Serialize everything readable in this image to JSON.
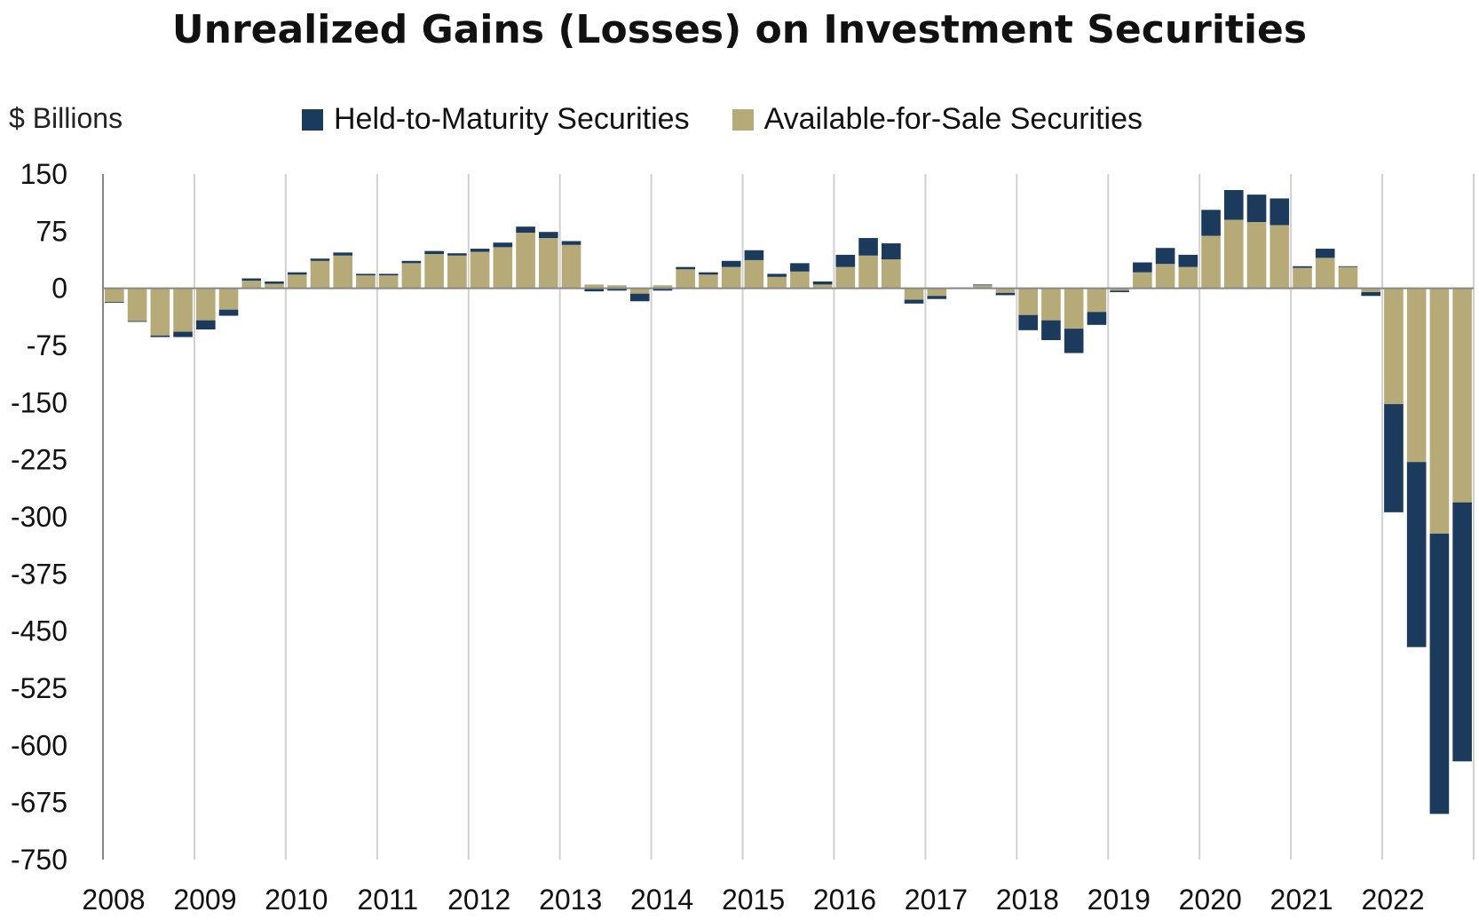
{
  "chart_data": {
    "type": "bar",
    "stacked": true,
    "title": "Unrealized Gains (Losses) on Investment Securities",
    "ylabel": "$ Billions",
    "ylim": [
      -750,
      150
    ],
    "yticks": [
      150,
      75,
      0,
      -75,
      -150,
      -225,
      -300,
      -375,
      -450,
      -525,
      -600,
      -675,
      -750
    ],
    "years": [
      "2008",
      "2009",
      "2010",
      "2011",
      "2012",
      "2013",
      "2014",
      "2015",
      "2016",
      "2017",
      "2018",
      "2019",
      "2020",
      "2021",
      "2022"
    ],
    "grid": "vertical at each year",
    "legend_position": "top",
    "categories": [
      "2008Q1",
      "2008Q2",
      "2008Q3",
      "2008Q4",
      "2009Q1",
      "2009Q2",
      "2009Q3",
      "2009Q4",
      "2010Q1",
      "2010Q2",
      "2010Q3",
      "2010Q4",
      "2011Q1",
      "2011Q2",
      "2011Q3",
      "2011Q4",
      "2012Q1",
      "2012Q2",
      "2012Q3",
      "2012Q4",
      "2013Q1",
      "2013Q2",
      "2013Q3",
      "2013Q4",
      "2014Q1",
      "2014Q2",
      "2014Q3",
      "2014Q4",
      "2015Q1",
      "2015Q2",
      "2015Q3",
      "2015Q4",
      "2016Q1",
      "2016Q2",
      "2016Q3",
      "2016Q4",
      "2017Q1",
      "2017Q2",
      "2017Q3",
      "2017Q4",
      "2018Q1",
      "2018Q2",
      "2018Q3",
      "2018Q4",
      "2019Q1",
      "2019Q2",
      "2019Q3",
      "2019Q4",
      "2020Q1",
      "2020Q2",
      "2020Q3",
      "2020Q4",
      "2021Q1",
      "2021Q2",
      "2021Q3",
      "2021Q4",
      "2022Q1",
      "2022Q2",
      "2022Q3",
      "2022Q4"
    ],
    "series": [
      {
        "name": "Available-for-Sale Securities",
        "color": "#b5aa78",
        "values": [
          -18,
          -43,
          -62,
          -57,
          -42,
          -28,
          10,
          6,
          18,
          36,
          43,
          17,
          17,
          33,
          45,
          43,
          48,
          54,
          73,
          66,
          57,
          5,
          4,
          -7,
          4,
          25,
          18,
          28,
          37,
          15,
          22,
          5,
          28,
          43,
          38,
          -15,
          -10,
          1,
          4,
          -6,
          -35,
          -42,
          -53,
          -31,
          -3,
          21,
          32,
          28,
          69,
          90,
          87,
          83,
          27,
          40,
          28,
          -5,
          -152,
          -228,
          -322,
          -281
        ]
      },
      {
        "name": "Held-to-Maturity Securities",
        "color": "#1b3a5c",
        "values": [
          -1,
          -1,
          -2,
          -7,
          -12,
          -8,
          3,
          3,
          3,
          3,
          4,
          2,
          2,
          3,
          4,
          3,
          4,
          6,
          8,
          8,
          5,
          -4,
          -3,
          -10,
          -3,
          3,
          3,
          8,
          13,
          4,
          11,
          4,
          16,
          23,
          21,
          -5,
          -4,
          0,
          1,
          -3,
          -20,
          -26,
          -32,
          -17,
          -2,
          13,
          21,
          16,
          34,
          39,
          36,
          35,
          2,
          12,
          1,
          -5,
          -142,
          -243,
          -368,
          -340
        ]
      }
    ]
  },
  "legend": {
    "htm_label": "Held-to-Maturity Securities",
    "afs_label": "Available-for-Sale Securities"
  },
  "colors": {
    "htm": "#1b3a5c",
    "afs": "#b5aa78",
    "grid": "#d0d0d0",
    "axis": "#888888"
  }
}
